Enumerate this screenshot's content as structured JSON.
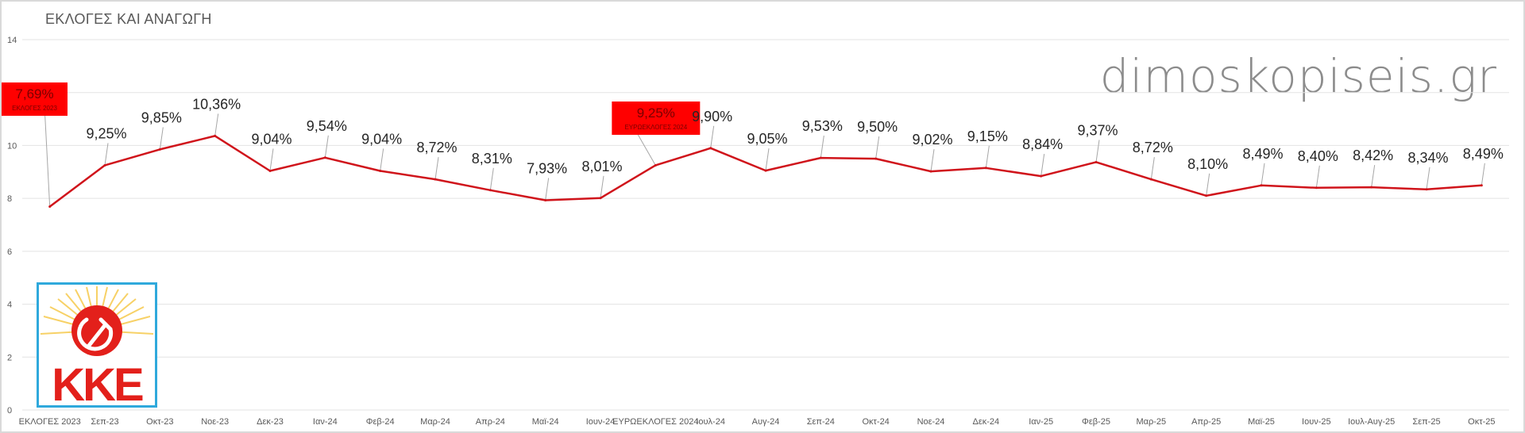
{
  "title": "ΕΚΛΟΓΕΣ ΚΑΙ ΑΝΑΓΩΓΗ",
  "watermark": "dimoskopiseis.gr",
  "logo_text": "KKE",
  "colors": {
    "line": "#d0141b",
    "label_box": "#ff0000",
    "grid": "#e3e3e3",
    "logo_border": "#2fa9dc"
  },
  "chart_data": {
    "type": "line",
    "title": "ΕΚΛΟΓΕΣ ΚΑΙ ΑΝΑΓΩΓΗ",
    "xlabel": "",
    "ylabel": "",
    "ylim": [
      0,
      14
    ],
    "yticks": [
      0,
      2,
      4,
      6,
      8,
      10,
      12,
      14
    ],
    "grid": true,
    "categories": [
      "ΕΚΛΟΓΕΣ 2023",
      "Σεπ-23",
      "Οκτ-23",
      "Νοε-23",
      "Δεκ-23",
      "Ιαν-24",
      "Φεβ-24",
      "Μαρ-24",
      "Απρ-24",
      "Μαϊ-24",
      "Ιουν-24",
      "ΕΥΡΩΕΚΛΟΓΕΣ 2024",
      "Ιουλ-24",
      "Αυγ-24",
      "Σεπ-24",
      "Οκτ-24",
      "Νοε-24",
      "Δεκ-24",
      "Ιαν-25",
      "Φεβ-25",
      "Μαρ-25",
      "Απρ-25",
      "Μαϊ-25",
      "Ιουν-25",
      "Ιουλ-Αυγ-25",
      "Σεπ-25",
      "Οκτ-25"
    ],
    "values": [
      7.69,
      9.25,
      9.85,
      10.36,
      9.04,
      9.54,
      9.04,
      8.72,
      8.31,
      7.93,
      8.01,
      9.25,
      9.9,
      9.05,
      9.53,
      9.5,
      9.02,
      9.15,
      8.84,
      9.37,
      8.72,
      8.1,
      8.49,
      8.4,
      8.42,
      8.34,
      8.49
    ],
    "data_labels": [
      "7,69%",
      "9,25%",
      "9,85%",
      "10,36%",
      "9,04%",
      "9,54%",
      "9,04%",
      "8,72%",
      "8,31%",
      "7,93%",
      "8,01%",
      "9,25%",
      "9,90%",
      "9,05%",
      "9,53%",
      "9,50%",
      "9,02%",
      "9,15%",
      "8,84%",
      "9,37%",
      "8,72%",
      "8,10%",
      "8,49%",
      "8,40%",
      "8,42%",
      "8,34%",
      "8,49%"
    ],
    "highlight_sublabels": {
      "0": "ΕΚΛΟΓΕΣ 2023",
      "11": "ΕΥΡΩΕΚΛΟΓΕΣ 2024"
    }
  }
}
